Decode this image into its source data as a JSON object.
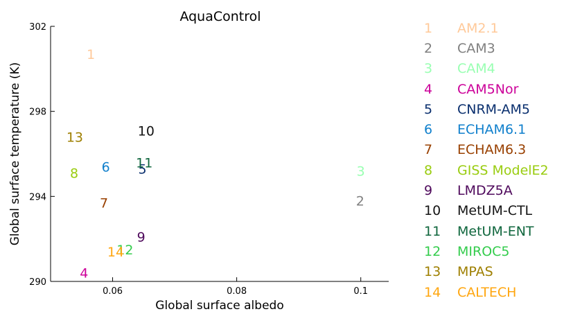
{
  "chart_data": {
    "type": "scatter",
    "title": "AquaControl",
    "xlabel": "Global surface albedo",
    "ylabel": "Global surface temperature (K)",
    "xlim": [
      0.05,
      0.1045
    ],
    "ylim": [
      290,
      302
    ],
    "xticks": [
      {
        "value": 0.06,
        "label": "0.06"
      },
      {
        "value": 0.08,
        "label": "0.08"
      },
      {
        "value": 0.1,
        "label": "0.1"
      }
    ],
    "yticks": [
      {
        "value": 290,
        "label": "290"
      },
      {
        "value": 294,
        "label": "294"
      },
      {
        "value": 298,
        "label": "298"
      },
      {
        "value": 302,
        "label": "302"
      }
    ],
    "legend_position": "right, outside plot",
    "grid": false,
    "points": [
      {
        "id": "1",
        "label": "AM2.1",
        "x": 0.0565,
        "y": 300.7,
        "color": "#ffc999"
      },
      {
        "id": "2",
        "label": "CAM3",
        "x": 0.0999,
        "y": 293.8,
        "color": "#7f7f7f"
      },
      {
        "id": "3",
        "label": "CAM4",
        "x": 0.1,
        "y": 295.2,
        "color": "#99ffb2"
      },
      {
        "id": "4",
        "label": "CAM5Nor",
        "x": 0.0554,
        "y": 290.4,
        "color": "#cc0099"
      },
      {
        "id": "5",
        "label": "CNRM-AM5",
        "x": 0.0648,
        "y": 295.3,
        "color": "#0a2f6e"
      },
      {
        "id": "6",
        "label": "ECHAM6.1",
        "x": 0.0589,
        "y": 295.4,
        "color": "#0f7fcc"
      },
      {
        "id": "7",
        "label": "ECHAM6.3",
        "x": 0.0586,
        "y": 293.7,
        "color": "#994000"
      },
      {
        "id": "8",
        "label": "GISS ModelE2",
        "x": 0.0538,
        "y": 295.1,
        "color": "#99cc0f"
      },
      {
        "id": "9",
        "label": "LMDZ5A",
        "x": 0.0646,
        "y": 292.1,
        "color": "#4f0a5c"
      },
      {
        "id": "10",
        "label": "MetUM-CTL",
        "x": 0.0654,
        "y": 297.1,
        "color": "#141414"
      },
      {
        "id": "11",
        "label": "MetUM-ENT",
        "x": 0.0651,
        "y": 295.6,
        "color": "#0f663d"
      },
      {
        "id": "12",
        "label": "MIROC5",
        "x": 0.062,
        "y": 291.5,
        "color": "#33cc4c"
      },
      {
        "id": "13",
        "label": "MPAS",
        "x": 0.0539,
        "y": 296.8,
        "color": "#9e7f00"
      },
      {
        "id": "14",
        "label": "CALTECH",
        "x": 0.0605,
        "y": 291.4,
        "color": "#ffa60f"
      }
    ]
  }
}
